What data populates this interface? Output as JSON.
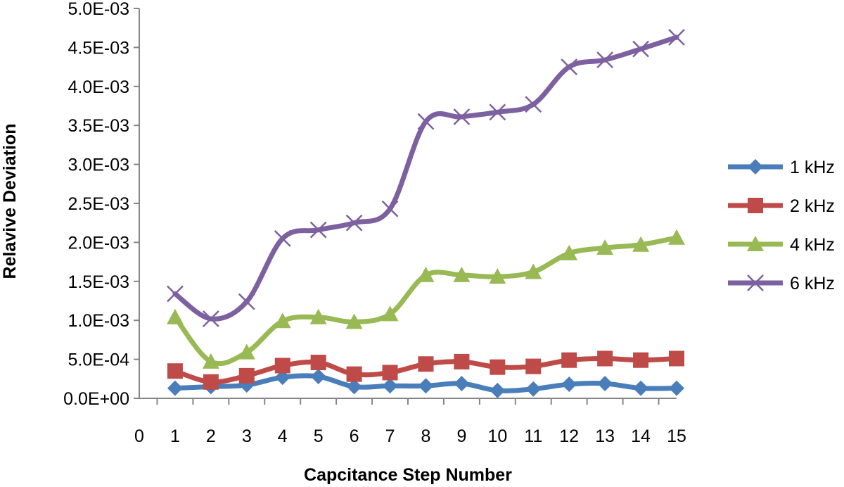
{
  "chart_data": {
    "type": "line",
    "title": "",
    "xlabel": "Capcitance  Step Number",
    "ylabel": "Relavive  Deviation",
    "x": [
      1,
      2,
      3,
      4,
      5,
      6,
      7,
      8,
      9,
      10,
      11,
      12,
      13,
      14,
      15
    ],
    "xlim": [
      0,
      15
    ],
    "ylim": [
      0,
      0.005
    ],
    "xtick_labels": [
      "0",
      "1",
      "2",
      "3",
      "4",
      "5",
      "6",
      "7",
      "8",
      "9",
      "10",
      "11",
      "12",
      "13",
      "14",
      "15"
    ],
    "ytick_values": [
      0,
      0.0005,
      0.001,
      0.0015,
      0.002,
      0.0025,
      0.003,
      0.0035,
      0.004,
      0.0045,
      0.005
    ],
    "ytick_labels": [
      "0.0E+00",
      "5.0E-04",
      "1.0E-03",
      "1.5E-03",
      "2.0E-03",
      "2.5E-03",
      "3.0E-03",
      "3.5E-03",
      "4.0E-03",
      "4.5E-03",
      "5.0E-03"
    ],
    "grid": false,
    "smooth": true,
    "legend_position": "right",
    "series": [
      {
        "name": "1 kHz",
        "color": "#4a7ebb",
        "marker": "diamond",
        "values": [
          0.00013,
          0.00015,
          0.00017,
          0.00027,
          0.00028,
          0.00015,
          0.00016,
          0.00016,
          0.00019,
          0.0001,
          0.00012,
          0.00018,
          0.00019,
          0.00013,
          0.00013
        ]
      },
      {
        "name": "2 kHz",
        "color": "#be4b48",
        "marker": "square",
        "values": [
          0.00035,
          0.00021,
          0.00029,
          0.00042,
          0.00046,
          0.00031,
          0.00033,
          0.00044,
          0.00047,
          0.0004,
          0.00041,
          0.00049,
          0.00051,
          0.00049,
          0.00051
        ]
      },
      {
        "name": "4 kHz",
        "color": "#98b954",
        "marker": "triangle",
        "values": [
          0.00104,
          0.00047,
          0.00059,
          0.00099,
          0.00104,
          0.00098,
          0.00108,
          0.00158,
          0.00158,
          0.00156,
          0.00162,
          0.00186,
          0.00193,
          0.00197,
          0.00206
        ]
      },
      {
        "name": "6 kHz",
        "color": "#7d60a0",
        "marker": "x",
        "values": [
          0.00134,
          0.00102,
          0.00124,
          0.00205,
          0.00216,
          0.00225,
          0.00243,
          0.00355,
          0.00361,
          0.00367,
          0.00377,
          0.00425,
          0.00434,
          0.00448,
          0.00463
        ]
      }
    ]
  }
}
